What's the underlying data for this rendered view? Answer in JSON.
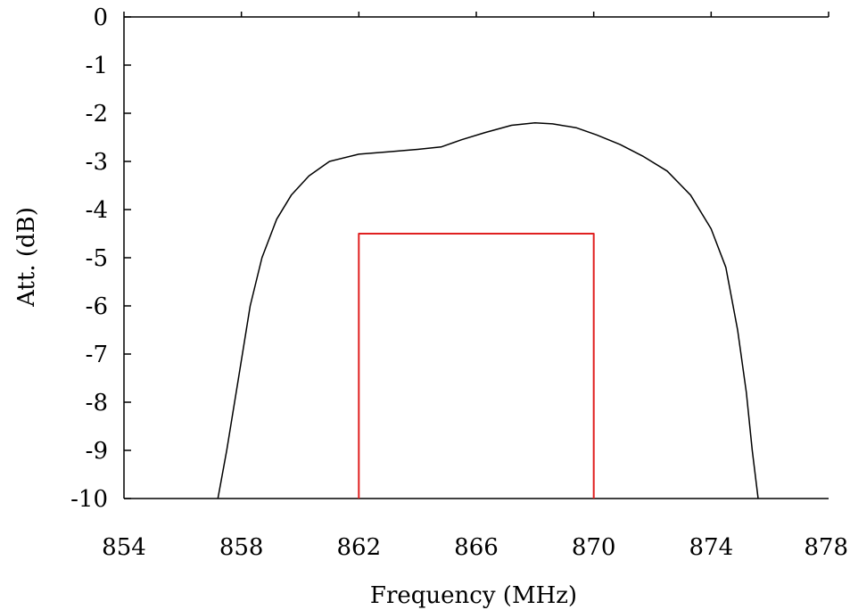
{
  "chart_data": {
    "type": "line",
    "title": "",
    "xlabel": "Frequency (MHz)",
    "ylabel": "Att. (dB)",
    "xlim": [
      854,
      878
    ],
    "ylim": [
      -10,
      0
    ],
    "x_ticks": [
      854,
      858,
      862,
      866,
      870,
      874,
      878
    ],
    "y_ticks": [
      0,
      -1,
      -2,
      -3,
      -4,
      -5,
      -6,
      -7,
      -8,
      -9,
      -10
    ],
    "x_tick_labels": [
      "854",
      "858",
      "862",
      "866",
      "870",
      "874",
      "878"
    ],
    "y_tick_labels": [
      "0",
      "-1",
      "-2",
      "-3",
      "-4",
      "-5",
      "-6",
      "-7",
      "-8",
      "-9",
      "-10"
    ],
    "grid": false,
    "legend": "none",
    "series": [
      {
        "color": "#000000",
        "kind": "line",
        "x": [
          857.2,
          857.5,
          857.9,
          858.3,
          858.7,
          859.2,
          859.7,
          860.3,
          861.0,
          862.0,
          863.0,
          864.0,
          864.8,
          865.5,
          866.3,
          867.2,
          868.0,
          868.6,
          869.4,
          870.1,
          870.9,
          871.7,
          872.5,
          873.3,
          874.0,
          874.5,
          874.9,
          875.2,
          875.4,
          875.6
        ],
        "y": [
          -10.0,
          -9.0,
          -7.5,
          -6.0,
          -5.0,
          -4.2,
          -3.7,
          -3.3,
          -3.0,
          -2.85,
          -2.8,
          -2.75,
          -2.7,
          -2.55,
          -2.4,
          -2.25,
          -2.2,
          -2.22,
          -2.3,
          -2.45,
          -2.65,
          -2.9,
          -3.2,
          -3.7,
          -4.4,
          -5.2,
          -6.5,
          -7.8,
          -9.0,
          -10.0
        ]
      },
      {
        "color": "#e02020",
        "kind": "mask",
        "x": [
          862,
          862,
          870,
          870
        ],
        "y": [
          -10,
          -4.5,
          -4.5,
          -10
        ]
      }
    ]
  }
}
